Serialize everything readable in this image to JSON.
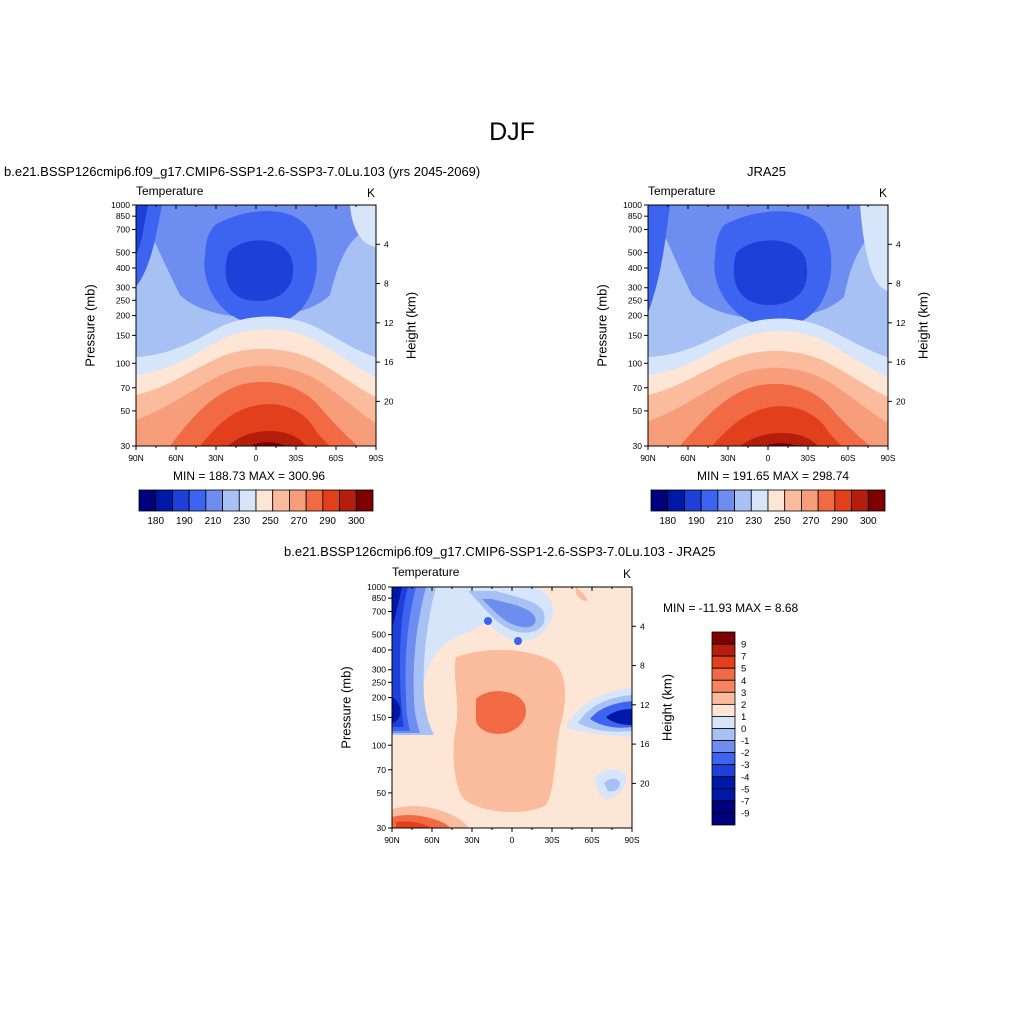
{
  "figure": {
    "title": "DJF"
  },
  "panels": {
    "left": {
      "title": "b.e21.BSSP126cmip6.f09_g17.CMIP6-SSP1-2.6-SSP3-7.0Lu.103 (yrs 2045-2069)",
      "variable": "Temperature",
      "units": "K",
      "ylabel": "Pressure (mb)",
      "ylabel_right": "Height (km)",
      "stats": "MIN = 188.73  MAX = 300.96"
    },
    "right": {
      "title": "JRA25",
      "variable": "Temperature",
      "units": "K",
      "ylabel": "Pressure (mb)",
      "ylabel_right": "Height (km)",
      "stats": "MIN = 191.65  MAX = 298.74"
    },
    "diff": {
      "title": "b.e21.BSSP126cmip6.f09_g17.CMIP6-SSP1-2.6-SSP3-7.0Lu.103 - JRA25",
      "variable": "Temperature",
      "units": "K",
      "ylabel": "Pressure (mb)",
      "ylabel_right": "Height (km)",
      "stats": "MIN = -11.93  MAX =   8.68"
    }
  },
  "chart_data": [
    {
      "type": "heatmap",
      "subtype": "filled-contour",
      "title": "b.e21.BSSP126cmip6.f09_g17.CMIP6-SSP1-2.6-SSP3-7.0Lu.103 (yrs 2045-2069)",
      "x_tick_labels": [
        "90N",
        "60N",
        "30N",
        "0",
        "30S",
        "60S",
        "90S"
      ],
      "y_tick_labels": [
        "30",
        "50",
        "70",
        "100",
        "150",
        "200",
        "250",
        "300",
        "400",
        "500",
        "700",
        "850",
        "1000"
      ],
      "y_right_tick_labels": [
        "4",
        "8",
        "12",
        "16",
        "20"
      ],
      "ylim": [
        1000,
        30
      ],
      "y_scale": "log",
      "contour_levels": [
        "180",
        "190",
        "200",
        "210",
        "220",
        "230",
        "240",
        "250",
        "260",
        "270",
        "280",
        "290",
        "300"
      ],
      "colorbar_labels": [
        "180",
        "190",
        "210",
        "230",
        "250",
        "270",
        "290",
        "300"
      ],
      "min": 188.73,
      "max": 300.96
    },
    {
      "type": "heatmap",
      "subtype": "filled-contour",
      "title": "JRA25",
      "x_tick_labels": [
        "90N",
        "60N",
        "30N",
        "0",
        "30S",
        "60S",
        "90S"
      ],
      "y_tick_labels": [
        "30",
        "50",
        "70",
        "100",
        "150",
        "200",
        "250",
        "300",
        "400",
        "500",
        "700",
        "850",
        "1000"
      ],
      "y_right_tick_labels": [
        "4",
        "8",
        "12",
        "16",
        "20"
      ],
      "ylim": [
        1000,
        30
      ],
      "y_scale": "log",
      "contour_levels": [
        "180",
        "190",
        "200",
        "210",
        "220",
        "230",
        "240",
        "250",
        "260",
        "270",
        "280",
        "290",
        "300"
      ],
      "colorbar_labels": [
        "180",
        "190",
        "210",
        "230",
        "250",
        "270",
        "290",
        "300"
      ],
      "min": 191.65,
      "max": 298.74
    },
    {
      "type": "heatmap",
      "subtype": "filled-contour",
      "title": "b.e21.BSSP126cmip6.f09_g17.CMIP6-SSP1-2.6-SSP3-7.0Lu.103 - JRA25",
      "x_tick_labels": [
        "90N",
        "60N",
        "30N",
        "0",
        "30S",
        "60S",
        "90S"
      ],
      "y_tick_labels": [
        "30",
        "50",
        "70",
        "100",
        "150",
        "200",
        "250",
        "300",
        "400",
        "500",
        "700",
        "850",
        "1000"
      ],
      "y_right_tick_labels": [
        "4",
        "8",
        "12",
        "16",
        "20"
      ],
      "ylim": [
        1000,
        30
      ],
      "y_scale": "log",
      "colorbar_labels": [
        "9",
        "7",
        "5",
        "4",
        "3",
        "2",
        "1",
        "0",
        "-1",
        "-2",
        "-3",
        "-4",
        "-5",
        "-7",
        "-9"
      ],
      "min": -11.93,
      "max": 8.68
    }
  ],
  "colors": {
    "abs_scale": [
      "#00007f",
      "#0018a8",
      "#1f3fd9",
      "#3c64f0",
      "#6d8ef0",
      "#a8c1f5",
      "#d6e5fa",
      "#fde6d6",
      "#fbbc9d",
      "#f79d79",
      "#f26a44",
      "#e2401c",
      "#b41e0a",
      "#7f0000"
    ],
    "diff_scale": [
      "#7f0000",
      "#b41e0a",
      "#e2401c",
      "#f26a44",
      "#f7845f",
      "#fbbc9d",
      "#fde6d6",
      "#d6e5fa",
      "#a8c1f5",
      "#6d8ef0",
      "#3c64f0",
      "#1f3fd9",
      "#0018a8",
      "#00007f",
      "#00007f"
    ]
  }
}
